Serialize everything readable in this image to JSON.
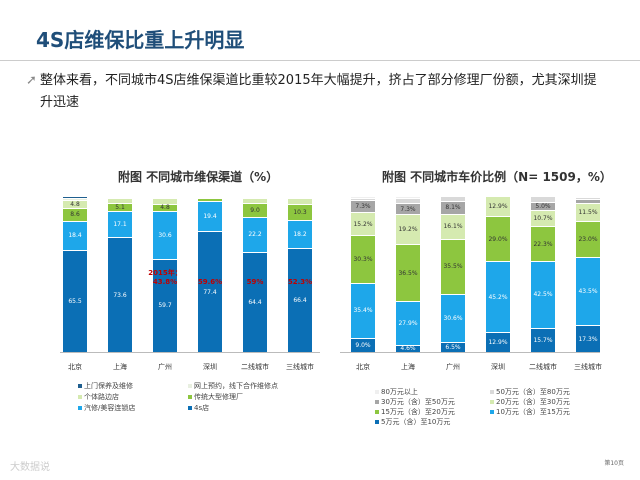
{
  "title": "4S店维保比重上升明显",
  "bullet": "整体来看，不同城市4S店维保渠道比重较2015年大幅提升，挤占了部分修理厂份额，尤其深圳提升迅速",
  "bullet_icon": "arrow-icon",
  "logo": "大数据说",
  "page": "第10页",
  "chart_data": [
    {
      "type": "bar",
      "stacked": true,
      "title": "附图  不同城市维保渠道（%）",
      "categories": [
        "北京",
        "上海",
        "广州",
        "深圳",
        "二线城市",
        "三线城市"
      ],
      "series": [
        {
          "name": "4s店",
          "color": "#0b6fb5",
          "values": [
            65.5,
            73.6,
            59.7,
            77.4,
            64.4,
            66.4
          ]
        },
        {
          "name": "汽修/美容连锁店",
          "color": "#1ea7ea",
          "values": [
            18.4,
            17.1,
            30.6,
            19.4,
            22.2,
            18.2
          ]
        },
        {
          "name": "传统大型修理厂",
          "color": "#8dc63f",
          "values": [
            8.6,
            5.1,
            4.8,
            2.0,
            9.0,
            10.3
          ]
        },
        {
          "name": "个体路边店",
          "color": "#d5eab0",
          "values": [
            4.8,
            3.0,
            3.7,
            0.6,
            3.0,
            3.8
          ]
        },
        {
          "name": "网上预约，线下合作维修点",
          "color": "#e8efe0",
          "values": [
            1.6,
            0.6,
            0.6,
            0.3,
            0.9,
            0.8
          ]
        },
        {
          "name": "上门保养及维修",
          "color": "#1f5f8f",
          "values": [
            1.1,
            0.6,
            0.6,
            0.3,
            0.5,
            0.5
          ]
        }
      ],
      "annotations": [
        {
          "category": "广州",
          "text": "2015年："
        },
        {
          "category": "广州",
          "text": "43.8%"
        },
        {
          "category": "深圳",
          "text": "59.6%"
        },
        {
          "category": "二线城市",
          "text": "59%"
        },
        {
          "category": "三线城市",
          "text": "52.3%"
        }
      ],
      "ylim": [
        0,
        100
      ]
    },
    {
      "type": "bar",
      "stacked": true,
      "title": "附图  不同城市车价比例（N= 1509，%）",
      "categories": [
        "北京",
        "上海",
        "广州",
        "深圳",
        "二线城市",
        "三线城市"
      ],
      "series": [
        {
          "name": "5万元（含）至10万元",
          "color": "#0b6fb5",
          "values": [
            9.0,
            4.6,
            6.5,
            12.9,
            15.7,
            17.3
          ]
        },
        {
          "name": "10万元（含）至15万元",
          "color": "#1ea7ea",
          "values": [
            35.4,
            27.9,
            30.6,
            45.2,
            42.5,
            43.5
          ]
        },
        {
          "name": "15万元（含）至20万元",
          "color": "#8dc63f",
          "values": [
            30.3,
            36.5,
            35.5,
            29.0,
            22.3,
            23.0
          ]
        },
        {
          "name": "20万元（含）至30万元",
          "color": "#d5eab0",
          "values": [
            15.2,
            19.2,
            16.1,
            12.9,
            10.7,
            11.5
          ]
        },
        {
          "name": "30万元（含）至50万元",
          "color": "#a6a6a6",
          "values": [
            7.3,
            7.3,
            8.1,
            0,
            5.0,
            3.1
          ]
        },
        {
          "name": "50万元（含）至80万元",
          "color": "#d9d9d9",
          "values": [
            1.7,
            3.5,
            3.2,
            0,
            3.5,
            0.8
          ]
        },
        {
          "name": "80万元以上",
          "color": "#efefef",
          "values": [
            1.1,
            1.0,
            0,
            0,
            0.3,
            0.8
          ]
        }
      ],
      "ylim": [
        0,
        100
      ]
    }
  ]
}
